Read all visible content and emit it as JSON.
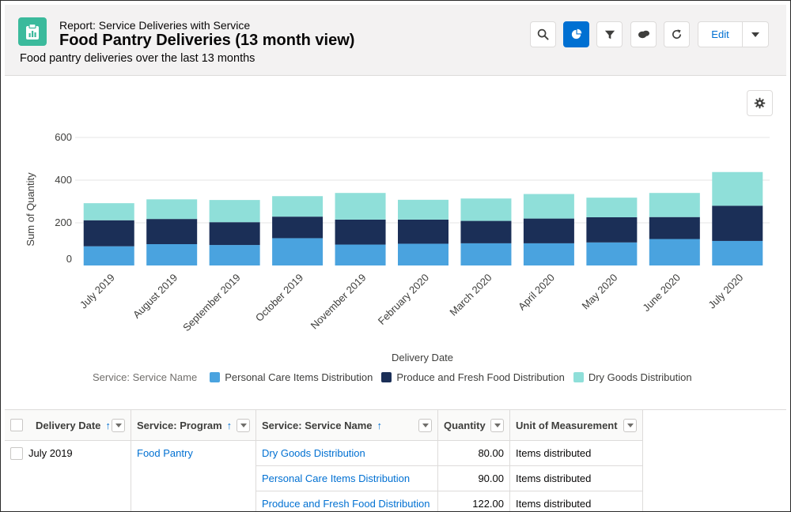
{
  "header": {
    "eyebrow": "Report: Service Deliveries with Service",
    "title": "Food Pantry Deliveries (13 month view)",
    "subtitle": "Food pantry deliveries over the last 13 months",
    "edit_label": "Edit"
  },
  "colors": {
    "personal_care": "#4aa3df",
    "produce": "#1b2f57",
    "dry_goods": "#8fdfd9",
    "accent": "#0070d2"
  },
  "chart_data": {
    "type": "bar",
    "stacked": true,
    "xlabel": "Delivery Date",
    "ylabel": "Sum of Quantity",
    "ylim": [
      0,
      600
    ],
    "yticks": [
      0,
      200,
      400,
      600
    ],
    "categories": [
      "July 2019",
      "August 2019",
      "September 2019",
      "October 2019",
      "November 2019",
      "February 2020",
      "March 2020",
      "April 2020",
      "May 2020",
      "June 2020",
      "July 2020"
    ],
    "series": [
      {
        "name": "Personal Care Items Distribution",
        "values": [
          90,
          100,
          96,
          128,
          98,
          102,
          104,
          104,
          108,
          124,
          115
        ]
      },
      {
        "name": "Produce and Fresh Food Distribution",
        "values": [
          122,
          118,
          107,
          101,
          117,
          113,
          105,
          116,
          118,
          103,
          165
        ]
      },
      {
        "name": "Dry Goods Distribution",
        "values": [
          80,
          92,
          104,
          96,
          125,
          93,
          105,
          115,
          92,
          113,
          158
        ]
      }
    ],
    "legend_title": "Service: Service Name",
    "grid": true
  },
  "table": {
    "columns": [
      "Delivery Date",
      "Service: Program",
      "Service: Service Name",
      "Quantity",
      "Unit of Measurement"
    ],
    "rows": [
      {
        "date": "July 2019",
        "program": "Food Pantry",
        "service": "Dry Goods Distribution",
        "quantity": "80.00",
        "unit": "Items distributed"
      },
      {
        "date": "",
        "program": "",
        "service": "Personal Care Items Distribution",
        "quantity": "90.00",
        "unit": "Items distributed"
      },
      {
        "date": "",
        "program": "",
        "service": "Produce and Fresh Food Distribution",
        "quantity": "122.00",
        "unit": "Items distributed"
      }
    ]
  }
}
